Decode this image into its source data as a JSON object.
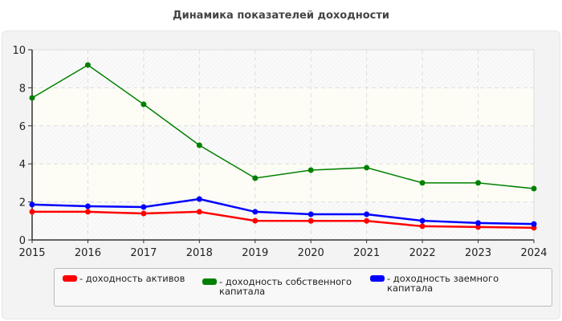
{
  "chart_data": {
    "type": "line",
    "title": "Динамика показателей доходности",
    "xlabel": "",
    "ylabel": "",
    "x": [
      "2015",
      "2016",
      "2017",
      "2018",
      "2019",
      "2020",
      "2021",
      "2022",
      "2023",
      "2024"
    ],
    "ylim": [
      0,
      10
    ],
    "yticks": [
      "0",
      "2",
      "4",
      "6",
      "8",
      "10"
    ],
    "grid": true,
    "legend_position": "bottom",
    "series": [
      {
        "name": "- доходность активов",
        "color": "#ff0000",
        "values": [
          1.48,
          1.48,
          1.39,
          1.48,
          1.01,
          1.0,
          1.0,
          0.72,
          0.68,
          0.64
        ]
      },
      {
        "name": "- доходность собственного капитала",
        "color": "#008000",
        "values": [
          7.47,
          9.2,
          7.13,
          4.98,
          3.25,
          3.67,
          3.8,
          3.0,
          3.0,
          2.7
        ]
      },
      {
        "name": "- доходность заемного капитала",
        "color": "#0000ff",
        "values": [
          1.86,
          1.77,
          1.73,
          2.15,
          1.48,
          1.35,
          1.35,
          1.01,
          0.89,
          0.84
        ]
      }
    ]
  }
}
